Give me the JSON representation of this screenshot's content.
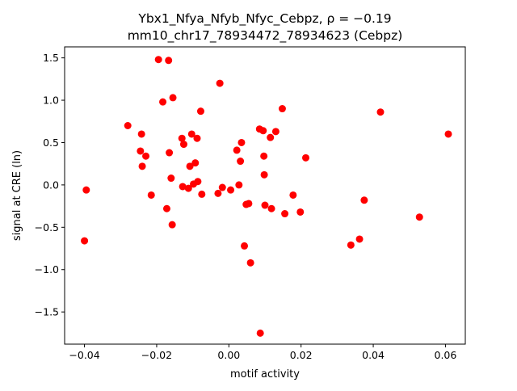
{
  "chart_data": {
    "type": "scatter",
    "title_line1": "Ybx1_Nfya_Nfyb_Nfyc_Cebpz, ρ = −0.19",
    "title_line2": "mm10_chr17_78934472_78934623 (Cebpz)",
    "xlabel": "motif activity",
    "ylabel": "signal at CRE (ln)",
    "xlim": [
      -0.0455,
      0.0655
    ],
    "ylim": [
      -1.88,
      1.63
    ],
    "x_ticks": [
      -0.04,
      -0.02,
      0.0,
      0.02,
      0.04,
      0.06
    ],
    "x_tick_labels": [
      "−0.04",
      "−0.02",
      "0.00",
      "0.02",
      "0.04",
      "0.06"
    ],
    "y_ticks": [
      -1.5,
      -1.0,
      -0.5,
      0.0,
      0.5,
      1.0,
      1.5
    ],
    "y_tick_labels": [
      "−1.5",
      "−1.0",
      "−0.5",
      "0.0",
      "0.5",
      "1.0",
      "1.5"
    ],
    "marker_color": "#ff0000",
    "grid": false,
    "points": [
      {
        "x": -0.04,
        "y": -0.66
      },
      {
        "x": -0.0395,
        "y": -0.06
      },
      {
        "x": -0.028,
        "y": 0.7
      },
      {
        "x": -0.0245,
        "y": 0.4
      },
      {
        "x": -0.0242,
        "y": 0.6
      },
      {
        "x": -0.024,
        "y": 0.22
      },
      {
        "x": -0.023,
        "y": 0.34
      },
      {
        "x": -0.0215,
        "y": -0.12
      },
      {
        "x": -0.0195,
        "y": 1.48
      },
      {
        "x": -0.0183,
        "y": 0.98
      },
      {
        "x": -0.0172,
        "y": -0.28
      },
      {
        "x": -0.0167,
        "y": 1.47
      },
      {
        "x": -0.0165,
        "y": 0.38
      },
      {
        "x": -0.016,
        "y": 0.08
      },
      {
        "x": -0.0157,
        "y": -0.47
      },
      {
        "x": -0.0155,
        "y": 1.03
      },
      {
        "x": -0.013,
        "y": 0.55
      },
      {
        "x": -0.0128,
        "y": -0.02
      },
      {
        "x": -0.0125,
        "y": 0.48
      },
      {
        "x": -0.0112,
        "y": -0.04
      },
      {
        "x": -0.0108,
        "y": 0.22
      },
      {
        "x": -0.0103,
        "y": 0.6
      },
      {
        "x": -0.0098,
        "y": 0.01
      },
      {
        "x": -0.0093,
        "y": 0.26
      },
      {
        "x": -0.0088,
        "y": 0.55
      },
      {
        "x": -0.0086,
        "y": 0.04
      },
      {
        "x": -0.0078,
        "y": 0.87
      },
      {
        "x": -0.0075,
        "y": -0.11
      },
      {
        "x": -0.003,
        "y": -0.1
      },
      {
        "x": -0.0025,
        "y": 1.2
      },
      {
        "x": -0.0018,
        "y": -0.03
      },
      {
        "x": 0.0005,
        "y": -0.06
      },
      {
        "x": 0.0022,
        "y": 0.41
      },
      {
        "x": 0.0028,
        "y": 0.0
      },
      {
        "x": 0.0032,
        "y": 0.28
      },
      {
        "x": 0.0035,
        "y": 0.5
      },
      {
        "x": 0.0043,
        "y": -0.72
      },
      {
        "x": 0.0048,
        "y": -0.23
      },
      {
        "x": 0.0055,
        "y": -0.22
      },
      {
        "x": 0.006,
        "y": -0.92
      },
      {
        "x": 0.0085,
        "y": 0.66
      },
      {
        "x": 0.0087,
        "y": -1.75
      },
      {
        "x": 0.0095,
        "y": 0.64
      },
      {
        "x": 0.0097,
        "y": 0.34
      },
      {
        "x": 0.0098,
        "y": 0.12
      },
      {
        "x": 0.01,
        "y": -0.24
      },
      {
        "x": 0.0115,
        "y": 0.56
      },
      {
        "x": 0.0118,
        "y": -0.28
      },
      {
        "x": 0.013,
        "y": 0.63
      },
      {
        "x": 0.0148,
        "y": 0.9
      },
      {
        "x": 0.0155,
        "y": -0.34
      },
      {
        "x": 0.0178,
        "y": -0.12
      },
      {
        "x": 0.0198,
        "y": -0.32
      },
      {
        "x": 0.0213,
        "y": 0.32
      },
      {
        "x": 0.0338,
        "y": -0.71
      },
      {
        "x": 0.0362,
        "y": -0.64
      },
      {
        "x": 0.0375,
        "y": -0.18
      },
      {
        "x": 0.042,
        "y": 0.86
      },
      {
        "x": 0.0528,
        "y": -0.38
      },
      {
        "x": 0.0608,
        "y": 0.6
      }
    ]
  }
}
